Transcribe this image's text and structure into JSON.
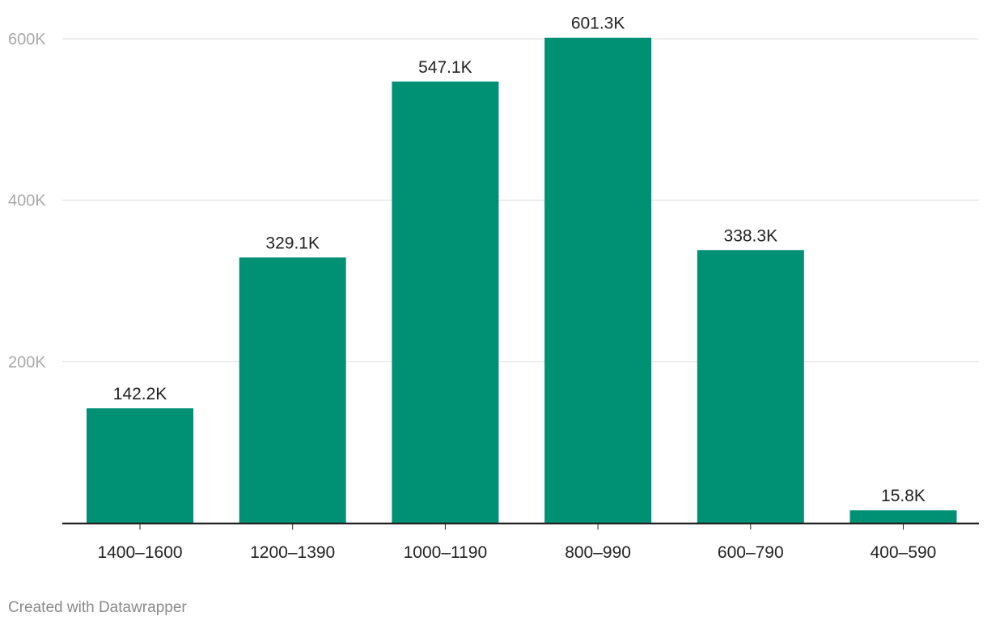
{
  "chart_data": {
    "type": "bar",
    "categories": [
      "1400–1600",
      "1200–1390",
      "1000–1190",
      "800–990",
      "600–790",
      "400–590"
    ],
    "values": [
      142200,
      329100,
      547100,
      601300,
      338300,
      15800
    ],
    "value_labels": [
      "142.2K",
      "329.1K",
      "547.1K",
      "601.3K",
      "338.3K",
      "15.8K"
    ],
    "ylim": [
      0,
      600000
    ],
    "yticks": [
      {
        "value": 200000,
        "label": "200K"
      },
      {
        "value": 400000,
        "label": "400K"
      },
      {
        "value": 600000,
        "label": "600K"
      }
    ],
    "title": "",
    "xlabel": "",
    "ylabel": "",
    "grid": true,
    "bar_color": "#009175"
  },
  "footer": {
    "credit": "Created with Datawrapper"
  }
}
